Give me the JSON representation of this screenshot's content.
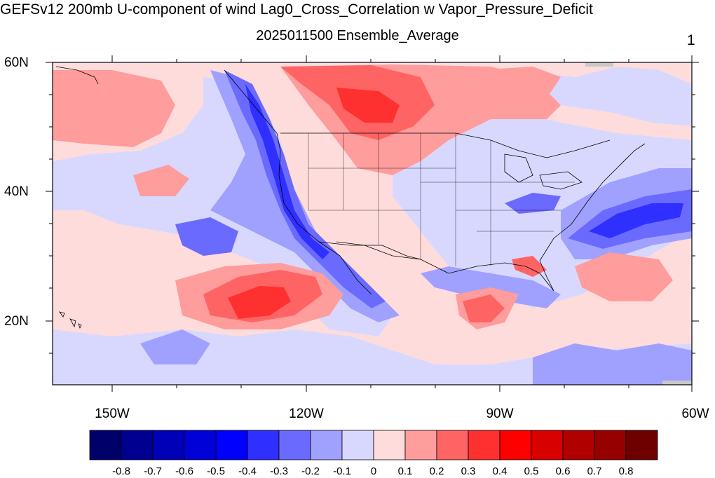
{
  "title": "GEFSv12 200mb U-component of wind Lag0_Cross_Correlation w Vapor_Pressure_Deficit",
  "subtitle": "2025011500 Ensemble_Average",
  "frame_number": "1",
  "lat_labels": [
    "60N",
    "40N",
    "20N"
  ],
  "lon_labels": [
    "150W",
    "120W",
    "90W",
    "60W"
  ],
  "colorbar": {
    "tick_labels": [
      "-0.8",
      "-0.7",
      "-0.6",
      "-0.5",
      "-0.4",
      "-0.3",
      "-0.2",
      "-0.1",
      "0",
      "0.1",
      "0.2",
      "0.3",
      "0.4",
      "0.5",
      "0.6",
      "0.7",
      "0.8"
    ],
    "colors": [
      "#00006b",
      "#000090",
      "#0000b8",
      "#0000d8",
      "#0000ff",
      "#2f2fff",
      "#6a6aff",
      "#a0a0ff",
      "#d8d8ff",
      "#ffdcdc",
      "#ff9c9c",
      "#ff6464",
      "#ff3030",
      "#ff0000",
      "#d80000",
      "#b00000",
      "#960000",
      "#6e0000"
    ]
  },
  "map_colors": {
    "neutral_neg": "#d8d8ff",
    "neutral_pos": "#ffdcdc",
    "weak_neg": "#a0a0ff",
    "mod_neg": "#6a6aff",
    "strong_neg": "#2f2fff",
    "weak_pos": "#ff9c9c",
    "mod_pos": "#ff6464",
    "strong_pos": "#ff3030",
    "missing": "#c8c8c8"
  }
}
